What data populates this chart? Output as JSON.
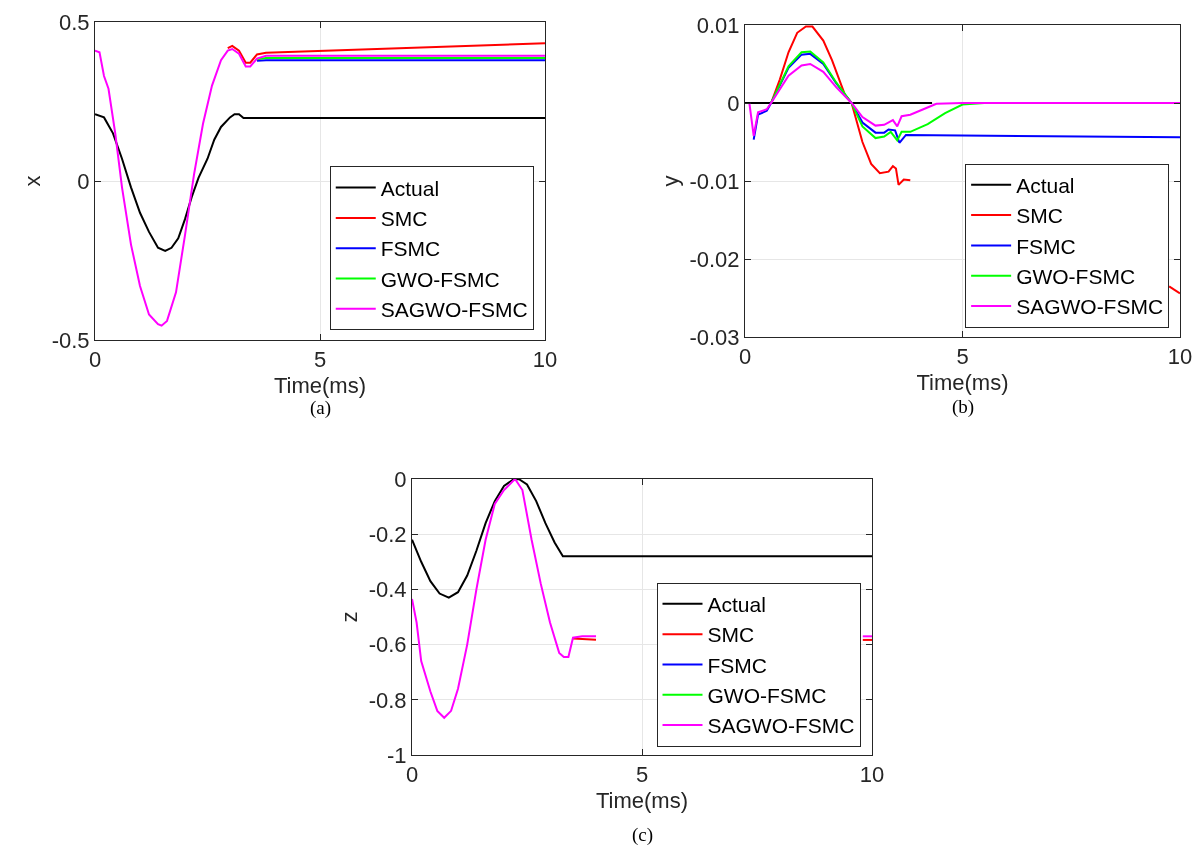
{
  "chart_data": [
    {
      "type": "line",
      "xlabel": "Time(ms)",
      "ylabel": "x",
      "annotations": [
        "(a)"
      ],
      "xlim": [
        0,
        10
      ],
      "ylim": [
        -0.5,
        0.5
      ],
      "xticks": [
        0,
        5,
        10
      ],
      "yticks": [
        -0.5,
        0,
        0.5
      ],
      "grid": true,
      "legend": "bottom right",
      "series": [
        {
          "name": "Actual",
          "color": "#000000",
          "x": [
            0,
            0.2,
            0.4,
            0.6,
            0.8,
            1.0,
            1.2,
            1.4,
            1.56,
            1.7,
            1.85,
            2.0,
            2.15,
            2.3,
            2.5,
            2.65,
            2.8,
            3.0,
            3.1,
            3.2,
            3.3,
            10
          ],
          "values": [
            0.21,
            0.2,
            0.15,
            0.07,
            -0.02,
            -0.1,
            -0.16,
            -0.21,
            -0.22,
            -0.21,
            -0.18,
            -0.12,
            -0.05,
            0.01,
            0.07,
            0.13,
            0.17,
            0.2,
            0.21,
            0.21,
            0.198,
            0.198
          ]
        },
        {
          "name": "SMC",
          "color": "#ff0000",
          "x": [
            2.95,
            3.05,
            3.2,
            3.35,
            3.45,
            3.6,
            3.8,
            10
          ],
          "values": [
            0.418,
            0.425,
            0.41,
            0.372,
            0.372,
            0.398,
            0.403,
            0.433
          ]
        },
        {
          "name": "FSMC",
          "color": "#0000ff",
          "x": [
            3.6,
            3.8,
            10
          ],
          "values": [
            0.378,
            0.38,
            0.38
          ]
        },
        {
          "name": "GWO-FSMC",
          "color": "#00ff00",
          "x": [
            3.6,
            3.8,
            10
          ],
          "values": [
            0.383,
            0.387,
            0.387
          ]
        },
        {
          "name": "SAGWO-FSMC",
          "color": "#ff00ff",
          "x": [
            0,
            0.1,
            0.2,
            0.3,
            0.45,
            0.6,
            0.8,
            1.0,
            1.2,
            1.4,
            1.48,
            1.6,
            1.8,
            2.0,
            2.2,
            2.4,
            2.6,
            2.8,
            2.95,
            3.05,
            3.2,
            3.35,
            3.45,
            3.6,
            3.8,
            10
          ],
          "values": [
            0.41,
            0.405,
            0.33,
            0.29,
            0.15,
            -0.02,
            -0.2,
            -0.33,
            -0.42,
            -0.45,
            -0.455,
            -0.44,
            -0.35,
            -0.17,
            0.02,
            0.18,
            0.3,
            0.38,
            0.41,
            0.415,
            0.4,
            0.36,
            0.36,
            0.385,
            0.394,
            0.394
          ]
        }
      ]
    },
    {
      "type": "line",
      "xlabel": "Time(ms)",
      "ylabel": "y",
      "annotations": [
        "(b)"
      ],
      "xlim": [
        0,
        10
      ],
      "ylim": [
        -0.03,
        0.01
      ],
      "xticks": [
        0,
        5,
        10
      ],
      "yticks": [
        -0.03,
        -0.02,
        -0.01,
        0,
        0.01
      ],
      "grid": true,
      "legend": "bottom right",
      "series": [
        {
          "name": "Actual",
          "color": "#000000",
          "x": [
            0,
            4.3
          ],
          "values": [
            0,
            0
          ]
        },
        {
          "name": "SMC",
          "color": "#ff0000",
          "x": [
            0.6,
            0.8,
            1.0,
            1.2,
            1.4,
            1.55,
            1.8,
            2.0,
            2.3,
            2.45,
            2.7,
            2.9,
            3.1,
            3.3,
            3.4,
            3.47,
            3.53,
            3.65,
            3.8,
            6,
            9.75,
            10
          ],
          "values": [
            0,
            0.003,
            0.0065,
            0.009,
            0.0098,
            0.0098,
            0.008,
            0.0055,
            0.001,
            0,
            -0.005,
            -0.0078,
            -0.009,
            -0.0088,
            -0.0081,
            -0.0084,
            -0.0105,
            -0.0098,
            -0.0099,
            null,
            -0.0235,
            -0.0244
          ]
        },
        {
          "name": "FSMC",
          "color": "#0000ff",
          "x": [
            0.2,
            0.3,
            0.5,
            0.6,
            1.0,
            1.3,
            1.5,
            1.8,
            2.1,
            2.45,
            2.7,
            3.0,
            3.2,
            3.3,
            3.45,
            3.55,
            3.7,
            10
          ],
          "values": [
            -0.0047,
            -0.0015,
            -0.001,
            0,
            0.0045,
            0.0062,
            0.0063,
            0.005,
            0.0025,
            0,
            -0.0025,
            -0.0038,
            -0.0038,
            -0.0034,
            -0.0035,
            -0.0051,
            -0.0041,
            -0.0044
          ]
        },
        {
          "name": "GWO-FSMC",
          "color": "#00ff00",
          "x": [
            0.6,
            1.0,
            1.3,
            1.5,
            1.8,
            2.1,
            2.45,
            2.7,
            3.0,
            3.2,
            3.35,
            3.5,
            3.6,
            3.8,
            4.2,
            4.6,
            5.0,
            5.5,
            10
          ],
          "values": [
            0,
            0.0047,
            0.0065,
            0.0066,
            0.0052,
            0.0026,
            0,
            -0.003,
            -0.0045,
            -0.0043,
            -0.0037,
            -0.0048,
            -0.0037,
            -0.0037,
            -0.0027,
            -0.0013,
            -0.0002,
            0,
            0
          ]
        },
        {
          "name": "SAGWO-FSMC",
          "color": "#ff00ff",
          "x": [
            0.1,
            0.2,
            0.3,
            0.5,
            0.6,
            1.0,
            1.3,
            1.5,
            1.8,
            2.1,
            2.45,
            2.7,
            3.0,
            3.2,
            3.4,
            3.5,
            3.6,
            3.8,
            4.1,
            4.4,
            5,
            10
          ],
          "values": [
            0,
            -0.0042,
            -0.0012,
            -0.0008,
            0,
            0.0035,
            0.0048,
            0.005,
            0.004,
            0.002,
            0,
            -0.0018,
            -0.0029,
            -0.0028,
            -0.0022,
            -0.003,
            -0.0017,
            -0.0015,
            -0.0008,
            -0.0001,
            0,
            0
          ]
        }
      ]
    },
    {
      "type": "line",
      "xlabel": "Time(ms)",
      "ylabel": "z",
      "annotations": [
        "(c)"
      ],
      "xlim": [
        0,
        10
      ],
      "ylim": [
        -1,
        0
      ],
      "xticks": [
        0,
        5,
        10
      ],
      "yticks": [
        -1,
        -0.8,
        -0.6,
        -0.4,
        -0.2,
        0
      ],
      "grid": true,
      "legend": "bottom right",
      "series": [
        {
          "name": "Actual",
          "color": "#000000",
          "x": [
            0,
            0.2,
            0.4,
            0.6,
            0.8,
            1.0,
            1.2,
            1.4,
            1.6,
            1.8,
            2.0,
            2.2,
            2.32,
            2.5,
            2.7,
            2.9,
            3.1,
            3.28,
            10
          ],
          "values": [
            -0.22,
            -0.3,
            -0.37,
            -0.415,
            -0.43,
            -0.41,
            -0.35,
            -0.26,
            -0.16,
            -0.08,
            -0.025,
            -0.002,
            0,
            -0.02,
            -0.08,
            -0.16,
            -0.23,
            -0.28,
            -0.28
          ]
        },
        {
          "name": "SMC",
          "color": "#ff0000",
          "x": [
            3.5,
            3.7,
            4.0,
            6,
            9.8,
            10
          ],
          "values": [
            -0.578,
            -0.58,
            -0.582,
            null,
            -0.583,
            -0.583
          ]
        },
        {
          "name": "FSMC",
          "color": "#0000ff"
        },
        {
          "name": "GWO-FSMC",
          "color": "#00ff00"
        },
        {
          "name": "SAGWO-FSMC",
          "color": "#ff00ff",
          "x": [
            0,
            0.1,
            0.2,
            0.4,
            0.55,
            0.7,
            0.85,
            1.0,
            1.2,
            1.4,
            1.6,
            1.8,
            2.0,
            2.24,
            2.4,
            2.6,
            2.8,
            3.0,
            3.2,
            3.3,
            3.4,
            3.5,
            3.7,
            4.0,
            6,
            9.8,
            10
          ],
          "values": [
            -0.435,
            -0.52,
            -0.66,
            -0.77,
            -0.84,
            -0.865,
            -0.84,
            -0.76,
            -0.6,
            -0.4,
            -0.22,
            -0.09,
            -0.04,
            0,
            -0.04,
            -0.22,
            -0.38,
            -0.52,
            -0.63,
            -0.645,
            -0.645,
            -0.575,
            -0.57,
            -0.57,
            null,
            -0.57,
            -0.57
          ]
        }
      ]
    }
  ]
}
